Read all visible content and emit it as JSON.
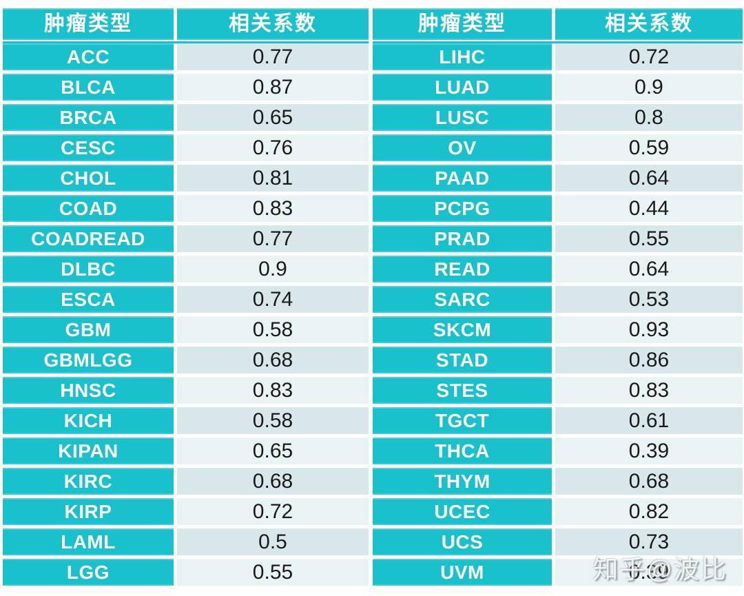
{
  "colors": {
    "teal": "#18c1cb",
    "row_dark": "#d8e8ea",
    "row_light": "#eaf3f4",
    "header_text": "#ffffff",
    "value_text": "#1a1a1a"
  },
  "watermark": {
    "text": "知乎@波比"
  },
  "left_table": {
    "headers": {
      "type": "肿瘤类型",
      "coef": "相关系数"
    },
    "rows": [
      {
        "type": "ACC",
        "coef": "0.77"
      },
      {
        "type": "BLCA",
        "coef": "0.87"
      },
      {
        "type": "BRCA",
        "coef": "0.65"
      },
      {
        "type": "CESC",
        "coef": "0.76"
      },
      {
        "type": "CHOL",
        "coef": "0.81"
      },
      {
        "type": "COAD",
        "coef": "0.83"
      },
      {
        "type": "COADREAD",
        "coef": "0.77"
      },
      {
        "type": "DLBC",
        "coef": "0.9"
      },
      {
        "type": "ESCA",
        "coef": "0.74"
      },
      {
        "type": "GBM",
        "coef": "0.58"
      },
      {
        "type": "GBMLGG",
        "coef": "0.68"
      },
      {
        "type": "HNSC",
        "coef": "0.83"
      },
      {
        "type": "KICH",
        "coef": "0.58"
      },
      {
        "type": "KIPAN",
        "coef": "0.65"
      },
      {
        "type": "KIRC",
        "coef": "0.68"
      },
      {
        "type": "KIRP",
        "coef": "0.72"
      },
      {
        "type": "LAML",
        "coef": "0.5"
      },
      {
        "type": "LGG",
        "coef": "0.55"
      }
    ]
  },
  "right_table": {
    "headers": {
      "type": "肿瘤类型",
      "coef": "相关系数"
    },
    "rows": [
      {
        "type": "LIHC",
        "coef": "0.72"
      },
      {
        "type": "LUAD",
        "coef": "0.9"
      },
      {
        "type": "LUSC",
        "coef": "0.8"
      },
      {
        "type": "OV",
        "coef": "0.59"
      },
      {
        "type": "PAAD",
        "coef": "0.64"
      },
      {
        "type": "PCPG",
        "coef": "0.44"
      },
      {
        "type": "PRAD",
        "coef": "0.55"
      },
      {
        "type": "READ",
        "coef": "0.64"
      },
      {
        "type": "SARC",
        "coef": "0.53"
      },
      {
        "type": "SKCM",
        "coef": "0.93"
      },
      {
        "type": "STAD",
        "coef": "0.86"
      },
      {
        "type": "STES",
        "coef": "0.83"
      },
      {
        "type": "TGCT",
        "coef": "0.61"
      },
      {
        "type": "THCA",
        "coef": "0.39"
      },
      {
        "type": "THYM",
        "coef": "0.68"
      },
      {
        "type": "UCEC",
        "coef": "0.82"
      },
      {
        "type": "UCS",
        "coef": "0.73"
      },
      {
        "type": "UVM",
        "coef": "0.39"
      }
    ]
  },
  "chart_data": {
    "type": "table",
    "columns": [
      "肿瘤类型",
      "相关系数"
    ],
    "rows": [
      [
        "ACC",
        0.77
      ],
      [
        "BLCA",
        0.87
      ],
      [
        "BRCA",
        0.65
      ],
      [
        "CESC",
        0.76
      ],
      [
        "CHOL",
        0.81
      ],
      [
        "COAD",
        0.83
      ],
      [
        "COADREAD",
        0.77
      ],
      [
        "DLBC",
        0.9
      ],
      [
        "ESCA",
        0.74
      ],
      [
        "GBM",
        0.58
      ],
      [
        "GBMLGG",
        0.68
      ],
      [
        "HNSC",
        0.83
      ],
      [
        "KICH",
        0.58
      ],
      [
        "KIPAN",
        0.65
      ],
      [
        "KIRC",
        0.68
      ],
      [
        "KIRP",
        0.72
      ],
      [
        "LAML",
        0.5
      ],
      [
        "LGG",
        0.55
      ],
      [
        "LIHC",
        0.72
      ],
      [
        "LUAD",
        0.9
      ],
      [
        "LUSC",
        0.8
      ],
      [
        "OV",
        0.59
      ],
      [
        "PAAD",
        0.64
      ],
      [
        "PCPG",
        0.44
      ],
      [
        "PRAD",
        0.55
      ],
      [
        "READ",
        0.64
      ],
      [
        "SARC",
        0.53
      ],
      [
        "SKCM",
        0.93
      ],
      [
        "STAD",
        0.86
      ],
      [
        "STES",
        0.83
      ],
      [
        "TGCT",
        0.61
      ],
      [
        "THCA",
        0.39
      ],
      [
        "THYM",
        0.68
      ],
      [
        "UCEC",
        0.82
      ],
      [
        "UCS",
        0.73
      ],
      [
        "UVM",
        0.39
      ]
    ],
    "title": "",
    "layout_hints": {
      "split_into_two_side_by_side_tables": true,
      "rows_per_table": 18,
      "value_row_shading": "alternating"
    }
  }
}
